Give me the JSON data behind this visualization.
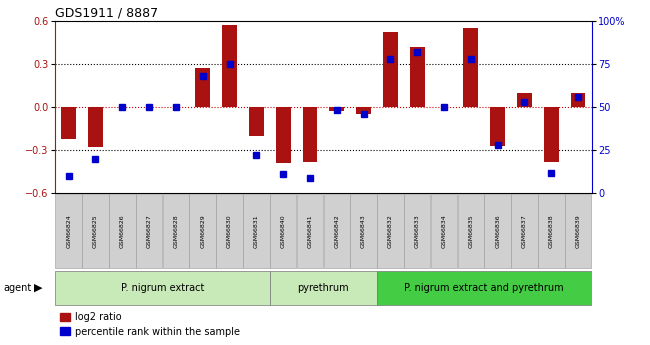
{
  "title": "GDS1911 / 8887",
  "samples": [
    "GSM66824",
    "GSM66825",
    "GSM66826",
    "GSM66827",
    "GSM66828",
    "GSM66829",
    "GSM66830",
    "GSM66831",
    "GSM66840",
    "GSM66841",
    "GSM66842",
    "GSM66843",
    "GSM66832",
    "GSM66833",
    "GSM66834",
    "GSM66835",
    "GSM66836",
    "GSM66837",
    "GSM66838",
    "GSM66839"
  ],
  "log2_ratio": [
    -0.22,
    -0.28,
    0.0,
    0.0,
    0.0,
    0.27,
    0.57,
    -0.2,
    -0.39,
    -0.38,
    -0.03,
    -0.05,
    0.52,
    0.42,
    0.0,
    0.55,
    -0.27,
    0.1,
    -0.38,
    0.1
  ],
  "percentile": [
    10,
    20,
    50,
    50,
    50,
    68,
    75,
    22,
    11,
    9,
    48,
    46,
    78,
    82,
    50,
    78,
    28,
    53,
    12,
    56
  ],
  "group_configs": [
    [
      0,
      8,
      "#c8eab8",
      "P. nigrum extract"
    ],
    [
      8,
      12,
      "#c8eab8",
      "pyrethrum"
    ],
    [
      12,
      20,
      "#44cc44",
      "P. nigrum extract and pyrethrum"
    ]
  ],
  "bar_color": "#aa1111",
  "percentile_color": "#0000cc",
  "ylim": [
    -0.6,
    0.6
  ],
  "y2lim": [
    0,
    100
  ],
  "yticks": [
    -0.6,
    -0.3,
    0.0,
    0.3,
    0.6
  ],
  "y2ticks": [
    0,
    25,
    50,
    75,
    100
  ],
  "tick_bg": "#c8c8c8",
  "plot_bg": "#ffffff"
}
